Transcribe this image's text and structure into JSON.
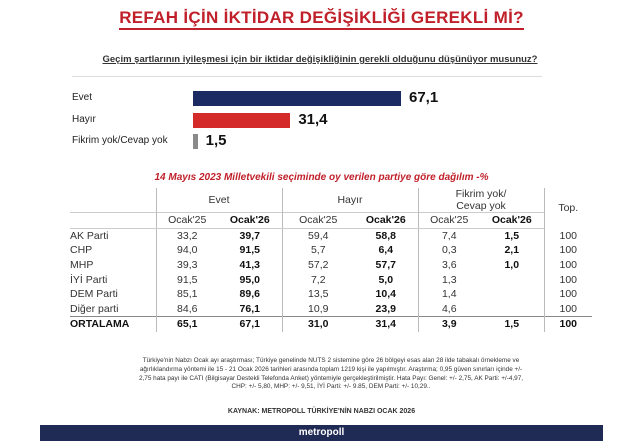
{
  "header": {
    "title": "REFAH İÇİN İKTİDAR DEĞİŞİKLİĞİ GEREKLİ Mİ?",
    "question": "Geçim şartlarının iyileşmesi için bir iktidar değişikliğinin gerekli olduğunu düşünüyor musunuz?"
  },
  "chart_data": [
    {
      "type": "bar",
      "orientation": "horizontal",
      "title": "REFAH İÇİN İKTİDAR DEĞİŞİKLİĞİ GEREKLİ Mİ?",
      "categories": [
        "Evet",
        "Hayır",
        "Fikrim yok/Cevap yok"
      ],
      "values": [
        67.1,
        31.4,
        1.5
      ],
      "value_labels": [
        "67,1",
        "31,4",
        "1,5"
      ],
      "colors": [
        "#1b2a63",
        "#d42a2a",
        "#8a8a8a"
      ],
      "xlim": [
        0,
        100
      ],
      "grid": false
    },
    {
      "type": "table",
      "title": "14 Mayıs 2023 Milletvekili seçiminde oy verilen partiye göre dağılım -%",
      "groups": [
        "Evet",
        "Hayır",
        "Fikrim yok/\nCevap yok",
        "Top."
      ],
      "columns": [
        "Ocak'25",
        "Ocak'26",
        "Ocak'25",
        "Ocak'26",
        "Ocak'25",
        "Ocak'26"
      ],
      "rows": [
        {
          "label": "AK Parti",
          "cells": [
            "33,2",
            "39,7",
            "59,4",
            "58,8",
            "7,4",
            "1,5",
            "100"
          ]
        },
        {
          "label": "CHP",
          "cells": [
            "94,0",
            "91,5",
            "5,7",
            "6,4",
            "0,3",
            "2,1",
            "100"
          ]
        },
        {
          "label": "MHP",
          "cells": [
            "39,3",
            "41,3",
            "57,2",
            "57,7",
            "3,6",
            "1,0",
            "100"
          ]
        },
        {
          "label": "İYİ Parti",
          "cells": [
            "91,5",
            "95,0",
            "7,2",
            "5,0",
            "1,3",
            "",
            "100"
          ]
        },
        {
          "label": "DEM Parti",
          "cells": [
            "85,1",
            "89,6",
            "13,5",
            "10,4",
            "1,4",
            "",
            "100"
          ]
        },
        {
          "label": "Diğer parti",
          "cells": [
            "84,6",
            "76,1",
            "10,9",
            "23,9",
            "4,6",
            "",
            "100"
          ]
        },
        {
          "label": "ORTALAMA",
          "cells": [
            "65,1",
            "67,1",
            "31,0",
            "31,4",
            "3,9",
            "1,5",
            "100"
          ]
        }
      ]
    }
  ],
  "notes": {
    "line1": "Türkiye'nin Nabzı Ocak ayı araştırması; Türkiye genelinde NUTS 2 sistemine göre 26 bölgeyi esas alan 28 ilde tabakalı örnekleme ve",
    "line2": "ağırlıklandırma yöntemi ile 15 - 21 Ocak 2026 tarihleri arasında toplam 1219 kişi ile yapılmıştır. Araştırma; 0,95 güven sınırları içinde +/-",
    "line3": "2,75 hata payı ile CATI (Bilgisayar Destekli Telefonda Anket) yöntemiyle gerçekleştirilmiştir. Hata Payı: Genel: +/- 2,75, AK Parti: +/-4,97,",
    "line4": "CHP: +/- 5,80, MHP: +/- 9,51, İYİ Parti: +/- 9.85, DEM Parti: +/- 10,29.."
  },
  "source": "KAYNAK: METROPOLL TÜRKİYE'NİN NABZI OCAK 2026",
  "footer": {
    "brand": "metropoll"
  }
}
